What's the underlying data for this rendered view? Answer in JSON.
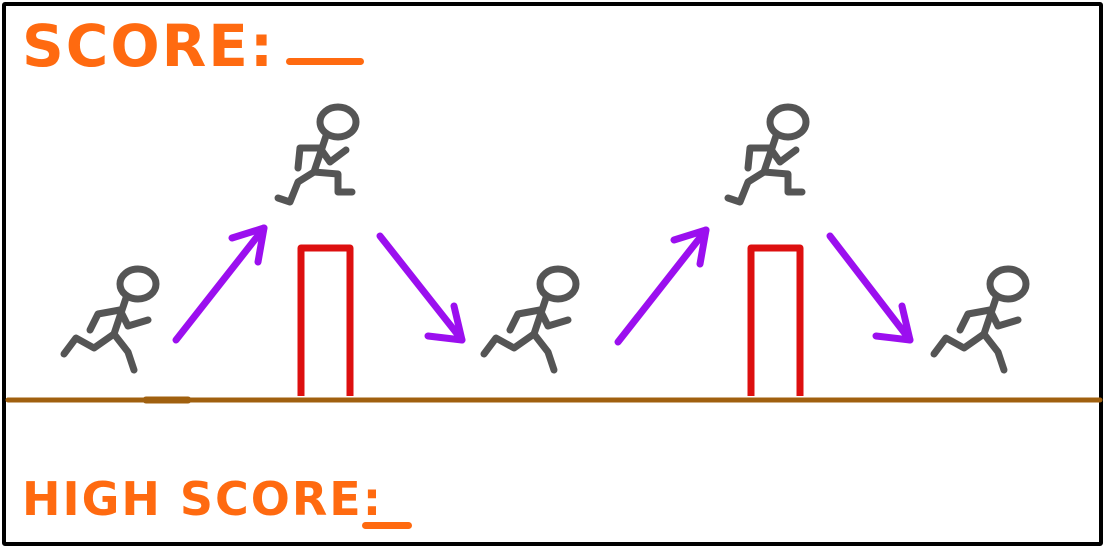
{
  "hud": {
    "score_label": "SCORE:",
    "score_value": "",
    "high_score_label": "HIGH SCORE:",
    "high_score_value": ""
  },
  "colors": {
    "hud_text": "#ff6a10",
    "ground": "#a0600f",
    "obstacle": "#dd0f0f",
    "arrow": "#9b0fef",
    "runner": "#555555",
    "frame": "#000000"
  },
  "scene": {
    "runners": 5,
    "obstacles": 2,
    "arrows": [
      "up-right",
      "down-right",
      "up-right",
      "down-right"
    ]
  }
}
